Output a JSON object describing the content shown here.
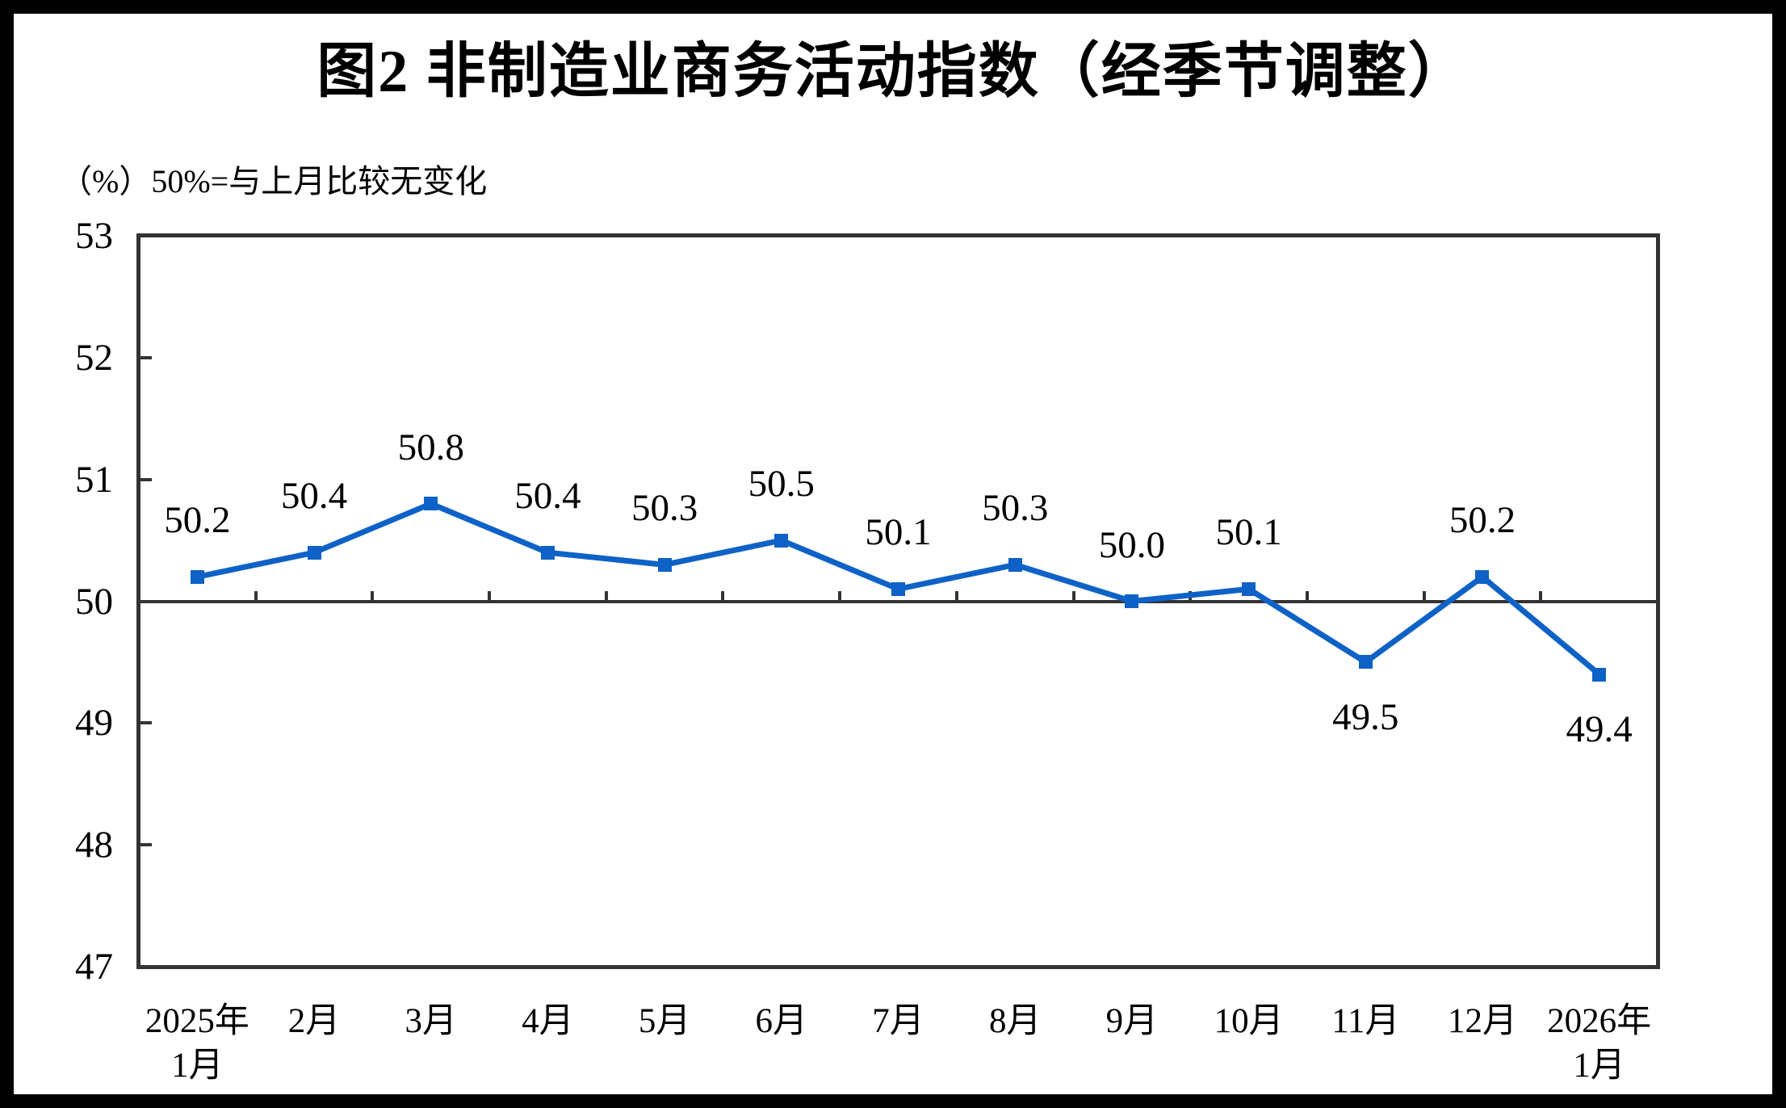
{
  "page": {
    "title": "图2 非制造业商务活动指数（经季节调整）",
    "unit_note": "（%）50%=与上月比较无变化"
  },
  "chart_data": {
    "type": "line",
    "title": "图2 非制造业商务活动指数（经季节调整）",
    "subtitle_unit_note": "（%）50%=与上月比较无变化",
    "categories": [
      "2025年\n1月",
      "2月",
      "3月",
      "4月",
      "5月",
      "6月",
      "7月",
      "8月",
      "9月",
      "10月",
      "11月",
      "12月",
      "2026年\n1月"
    ],
    "series": [
      {
        "name": "非制造业商务活动指数（经季节调整）",
        "values": [
          50.2,
          50.4,
          50.8,
          50.4,
          50.3,
          50.5,
          50.1,
          50.3,
          50.0,
          50.1,
          49.5,
          50.2,
          49.4
        ]
      }
    ],
    "data_labels": [
      "50.2",
      "50.4",
      "50.8",
      "50.4",
      "50.3",
      "50.5",
      "50.1",
      "50.3",
      "50.0",
      "50.1",
      "49.5",
      "50.2",
      "49.4"
    ],
    "label_positions": [
      "above",
      "above",
      "above",
      "above",
      "above",
      "above",
      "above",
      "above",
      "above",
      "above",
      "below",
      "above",
      "below"
    ],
    "y_axis": {
      "min": 47,
      "max": 53,
      "tick_interval": 1,
      "tick_labels": [
        "53",
        "52",
        "51",
        "50",
        "49",
        "48",
        "47"
      ],
      "minor_tick_values": [
        52,
        51,
        49,
        48
      ]
    },
    "reference_line": {
      "value": 50,
      "meaning": "50%=与上月比较无变化"
    },
    "legend": "none",
    "grid": "off",
    "line_color": "#0e62c7",
    "axis_color": "#333333",
    "text_color": "#000000",
    "marker": "square"
  }
}
